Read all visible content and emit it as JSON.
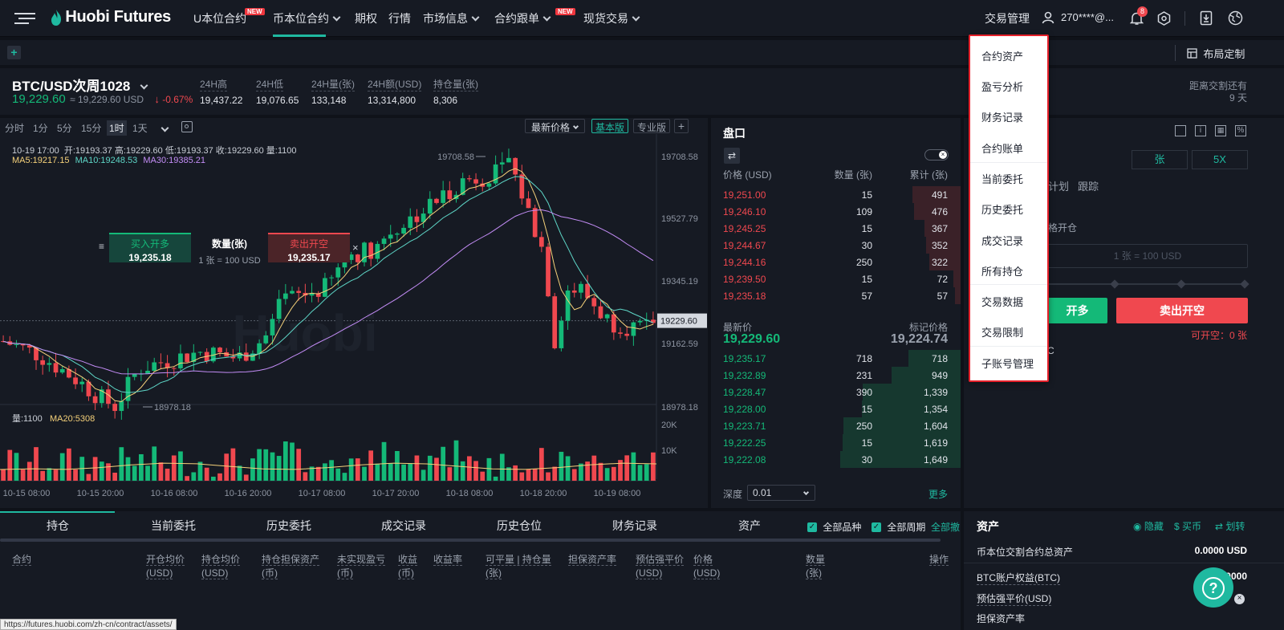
{
  "topnav": {
    "brand": "Huobi Futures",
    "items": [
      {
        "label": "U本位合约",
        "new": "NEW"
      },
      {
        "label": "币本位合约"
      },
      {
        "label": "期权"
      },
      {
        "label": "行情"
      },
      {
        "label": "市场信息"
      },
      {
        "label": "合约跟单",
        "new": "NEW"
      },
      {
        "label": "现货交易"
      }
    ],
    "trade_manage": "交易管理",
    "account": "270****@...",
    "notif_count": "8"
  },
  "subbar": {
    "add": "+",
    "layout_label": "布局定制"
  },
  "ticker": {
    "symbol": "BTC/USD次周1028",
    "price": "19,229.60",
    "index_price": "≈ 19,229.60 USD",
    "change": "-0.67%",
    "stats": [
      {
        "label": "24H高",
        "value": "19,437.22"
      },
      {
        "label": "24H低",
        "value": "19,076.65"
      },
      {
        "label": "24H量(张)",
        "value": "133,148"
      },
      {
        "label": "24H额(USD)",
        "value": "13,314,800"
      },
      {
        "label": "持仓量(张)",
        "value": "8,306"
      }
    ],
    "settle_label": "距离交割还有",
    "settle_value": "9 天"
  },
  "chart": {
    "timeframes": [
      "分时",
      "1分",
      "5分",
      "15分",
      "1时",
      "1天"
    ],
    "active_timeframe": "1时",
    "price_type": "最新价格",
    "basic": "基本版",
    "pro": "专业版",
    "ohlc": "10-19 17:00  开:19193.37 高:19229.60 低:19193.37 收:19229.60 量:1100",
    "ma5": "MA5:19217.15",
    "ma10": "MA10:19248.53",
    "ma30": "MA30:19385.21",
    "high_mark": "19708.58",
    "low_mark": "18978.18",
    "current_price_tag": "19229.60",
    "vol_label": "量:1100",
    "ma20_vol": "MA20:5308",
    "buy_label": "买入开多",
    "buy_price": "19,235.18",
    "qty_label": "数量(张)",
    "qty_unit": "1 张 = 100 USD",
    "sell_label": "卖出开空",
    "sell_price": "19,235.17",
    "close": "×",
    "menu": "≡",
    "watermark": "Huobi",
    "y_ticks": [
      "19708.58",
      "19527.79",
      "19345.19",
      "19162.59",
      "18978.18"
    ],
    "vol_ticks": [
      "20K",
      "10K"
    ],
    "x_ticks": [
      "10-15 08:00",
      "10-15 20:00",
      "10-16 08:00",
      "10-16 20:00",
      "10-17 08:00",
      "10-17 20:00",
      "10-18 08:00",
      "10-18 20:00",
      "10-19 08:00"
    ]
  },
  "orderbook": {
    "title": "盘口",
    "col_price": "价格 (USD)",
    "col_qty": "数量 (张)",
    "col_total": "累计 (张)",
    "asks": [
      [
        "19,251.00",
        "15",
        "491"
      ],
      [
        "19,246.10",
        "109",
        "476"
      ],
      [
        "19,245.25",
        "15",
        "367"
      ],
      [
        "19,244.67",
        "30",
        "352"
      ],
      [
        "19,244.16",
        "250",
        "322"
      ],
      [
        "19,239.50",
        "15",
        "72"
      ],
      [
        "19,235.18",
        "57",
        "57"
      ]
    ],
    "last_label": "最新价",
    "last_price": "19,229.60",
    "mark_label": "标记价格",
    "mark_price": "19,224.74",
    "bids": [
      [
        "19,235.17",
        "718",
        "718"
      ],
      [
        "19,232.89",
        "231",
        "949"
      ],
      [
        "19,228.47",
        "390",
        "1,339"
      ],
      [
        "19,228.00",
        "15",
        "1,354"
      ],
      [
        "19,223.71",
        "250",
        "1,604"
      ],
      [
        "19,222.25",
        "15",
        "1,619"
      ],
      [
        "19,222.08",
        "30",
        "1,649"
      ]
    ],
    "depth_label": "深度",
    "depth_value": "0.01",
    "more": "更多"
  },
  "trade": {
    "unit": "张",
    "leverage": "5X",
    "tab_plan": "计划",
    "tab_track": "跟踪",
    "limit_open": "格开仓",
    "qty_placeholder": "1 张 = 100 USD",
    "buy_btn": "开多",
    "sell_btn": "卖出开空",
    "can_short": "可开空：0 张",
    "partial_c": "C"
  },
  "bottom": {
    "tabs": [
      "持仓",
      "当前委托",
      "历史委托",
      "成交记录",
      "历史仓位",
      "财务记录",
      "资产"
    ],
    "check_all_symbols": "全部品种",
    "check_all_periods": "全部周期",
    "cancel_all": "全部撤",
    "headers": [
      {
        "l1": "合约",
        "l2": ""
      },
      {
        "l1": "开仓均价",
        "l2": "(USD)"
      },
      {
        "l1": "持仓均价",
        "l2": "(USD)"
      },
      {
        "l1": "持仓担保资产",
        "l2": "(币)"
      },
      {
        "l1": "未实现盈亏",
        "l2": "(币)"
      },
      {
        "l1": "收益",
        "l2": "(币)"
      },
      {
        "l1": "收益率",
        "l2": ""
      },
      {
        "l1": "可平量 | 持仓量",
        "l2": "(张)"
      },
      {
        "l1": "担保资产率",
        "l2": ""
      },
      {
        "l1": "预估强平价",
        "l2": "(USD)"
      },
      {
        "l1": "价格",
        "l2": "(USD)"
      },
      {
        "l1": "数量",
        "l2": "(张)"
      },
      {
        "l1": "操作",
        "l2": ""
      }
    ],
    "status_url": "https://futures.huobi.com/zh-cn/contract/assets/"
  },
  "assets": {
    "title": "资产",
    "hide": "隐藏",
    "buy_coin": "买币",
    "transfer": "划转",
    "total_label": "币本位交割合约总资产",
    "total_value": "0.0000 USD",
    "equity_label": "BTC账户权益(BTC)",
    "equity_value": "0000",
    "liq_label": "预估强平价(USD)",
    "rate_label": "担保资产率",
    "help": "?"
  },
  "dropdown": {
    "items": [
      "合约资产",
      "盈亏分析",
      "财务记录",
      "合约账单",
      "当前委托",
      "历史委托",
      "成交记录",
      "所有持仓",
      "交易数据",
      "交易限制",
      "子账号管理"
    ]
  },
  "colors": {
    "up": "#14b978",
    "down": "#f0484f",
    "accent": "#1fb9a0",
    "bg": "#161a23"
  },
  "chart_data": {
    "type": "candlestick",
    "symbol": "BTC/USD",
    "interval": "1h",
    "x_range": [
      "10-15 08:00",
      "10-19 17:00"
    ],
    "y_range": [
      18978.18,
      19708.58
    ],
    "high": 19708.58,
    "low": 18978.18,
    "last": 19229.6,
    "ma": {
      "MA5": 19217.15,
      "MA10": 19248.53,
      "MA30": 19385.21
    },
    "volume_ticks": [
      "10K",
      "20K"
    ],
    "volume_ma20": 5308
  }
}
